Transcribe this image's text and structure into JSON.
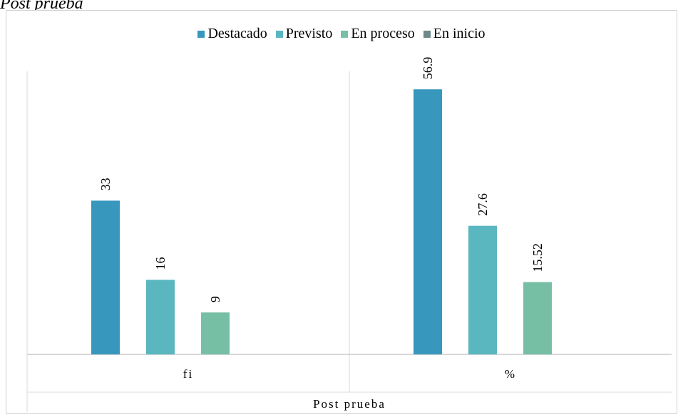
{
  "page": {
    "title": "Post prueba"
  },
  "chart_data": {
    "type": "bar",
    "categories": [
      "fi",
      "%"
    ],
    "xlabel": "Post prueba",
    "ylabel": "",
    "grid": false,
    "legend_position": "top",
    "ylim": [
      0,
      60
    ],
    "series": [
      {
        "name": "Destacado",
        "color": "#3797BD",
        "values": [
          33,
          56.9
        ],
        "labels": [
          "33",
          "56.9"
        ]
      },
      {
        "name": "Previsto",
        "color": "#5AB6BF",
        "values": [
          16,
          27.6
        ],
        "labels": [
          "16",
          "27.6"
        ]
      },
      {
        "name": "En proceso",
        "color": "#76BFA4",
        "values": [
          9,
          15.52
        ],
        "labels": [
          "9",
          "15.52"
        ]
      },
      {
        "name": "En inicio",
        "color": "#6E8789",
        "values": [
          0,
          0
        ],
        "labels": [
          "",
          ""
        ]
      }
    ]
  }
}
